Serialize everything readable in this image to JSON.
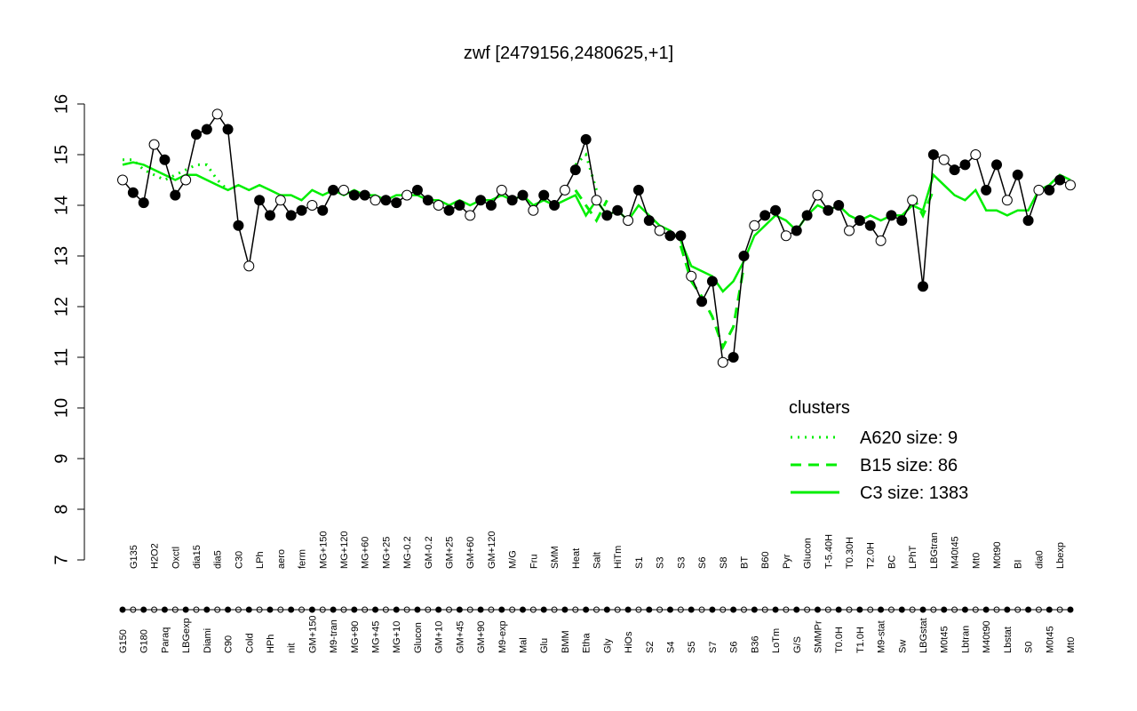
{
  "chart_data": {
    "type": "line",
    "title": "zwf [2479156,2480625,+1]",
    "categories": [
      "G150",
      "G135",
      "G180",
      "H2O2",
      "Paraq",
      "Oxctl",
      "LBGexp",
      "dia15",
      "Diami",
      "dia5",
      "C90",
      "C30",
      "Cold",
      "LPh",
      "HPh",
      "aero",
      "nit",
      "ferm",
      "GM+150",
      "MG+150",
      "M9-tran",
      "MG+120",
      "MG+90",
      "MG+60",
      "MG+45",
      "MG+25",
      "MG+10",
      "MG-0.2",
      "Glucon",
      "GM-0.2",
      "GM+10",
      "GM+25",
      "GM+45",
      "GM+60",
      "GM+90",
      "GM+120",
      "M9-exp",
      "M/G",
      "Mal",
      "Fru",
      "Glu",
      "SMM",
      "BMM",
      "Heat",
      "Etha",
      "Salt",
      "Gly",
      "HiTm",
      "HiOs",
      "S1",
      "S2",
      "S3",
      "S4",
      "S3",
      "S5",
      "S6",
      "S7",
      "S8",
      "S6",
      "BT",
      "B36",
      "B60",
      "LoTm",
      "Pyr",
      "G/S",
      "Glucon",
      "SMMPr",
      "T-5.40H",
      "T0.0H",
      "T0.30H",
      "T1.0H",
      "T2.0H",
      "M9-stat",
      "BC",
      "Sw",
      "LPhT",
      "LBGstat",
      "LBGtran",
      "M0t45",
      "M40t45",
      "Lbtran",
      "Mt0",
      "M40t90",
      "M0t90",
      "Lbstat",
      "BI",
      "S0",
      "dia0",
      "M0t45",
      "Lbexp",
      "Mt0"
    ],
    "values": [
      14.5,
      14.25,
      14.05,
      15.2,
      14.9,
      14.2,
      14.5,
      15.4,
      15.5,
      15.8,
      15.5,
      13.6,
      12.8,
      14.1,
      13.8,
      14.1,
      13.8,
      13.9,
      14.0,
      13.9,
      14.3,
      14.3,
      14.2,
      14.2,
      14.1,
      14.1,
      14.05,
      14.2,
      14.3,
      14.1,
      14.0,
      13.9,
      14.0,
      13.8,
      14.1,
      14.0,
      14.3,
      14.1,
      14.2,
      13.9,
      14.2,
      14.0,
      14.3,
      14.7,
      15.3,
      14.1,
      13.8,
      13.9,
      13.7,
      14.3,
      13.7,
      13.5,
      13.4,
      13.4,
      12.6,
      12.1,
      12.5,
      10.9,
      11.0,
      13.0,
      13.6,
      13.8,
      13.9,
      13.4,
      13.5,
      13.8,
      14.2,
      13.9,
      14.0,
      13.5,
      13.7,
      13.6,
      13.3,
      13.8,
      13.7,
      14.1,
      12.4,
      15.0,
      14.9,
      14.7,
      14.8,
      15.0,
      14.3,
      14.8,
      14.1,
      14.6,
      13.7,
      14.3,
      14.3,
      14.5,
      14.4
    ],
    "series": [
      {
        "name": "A620 size: 9",
        "color": "#00ee00",
        "style": "dotted",
        "values": [
          14.9,
          14.9,
          14.7,
          14.6,
          14.5,
          14.6,
          14.7,
          14.8,
          14.8,
          14.5,
          14.3,
          null,
          null,
          null,
          null,
          null,
          null,
          null,
          null,
          null,
          null,
          null,
          null,
          null,
          null,
          null,
          null,
          null,
          null,
          null,
          null,
          null,
          null,
          null,
          null,
          null,
          null,
          null,
          null,
          null,
          null,
          null,
          null,
          14.8,
          15.0,
          14.3,
          null,
          null,
          null,
          null,
          null,
          null,
          null,
          null,
          null,
          null,
          null,
          null,
          null,
          null,
          null,
          null,
          null,
          null,
          null,
          null,
          null,
          null,
          null,
          null,
          null,
          null,
          null,
          null,
          null,
          null,
          null,
          null,
          null,
          null,
          null,
          null,
          null,
          null,
          null,
          null,
          null,
          null,
          null,
          null,
          null
        ]
      },
      {
        "name": "B15 size: 86",
        "color": "#00ee00",
        "style": "dashed",
        "values": [
          null,
          null,
          null,
          null,
          null,
          null,
          null,
          null,
          null,
          null,
          null,
          null,
          null,
          null,
          null,
          null,
          null,
          null,
          null,
          null,
          null,
          null,
          null,
          null,
          null,
          null,
          null,
          null,
          null,
          null,
          null,
          null,
          null,
          null,
          null,
          null,
          null,
          null,
          null,
          null,
          null,
          null,
          null,
          14.3,
          14.0,
          13.7,
          14.1,
          null,
          null,
          null,
          null,
          null,
          null,
          13.2,
          12.5,
          12.2,
          11.8,
          11.2,
          11.6,
          12.8,
          null,
          null,
          null,
          null,
          null,
          null,
          null,
          null,
          null,
          null,
          null,
          null,
          null,
          null,
          null,
          14.2,
          13.8,
          14.3,
          null,
          null,
          null,
          null,
          null,
          null,
          null,
          null,
          null,
          null,
          null,
          null,
          null
        ]
      },
      {
        "name": "C3 size: 1383",
        "color": "#00ee00",
        "style": "solid",
        "values": [
          14.8,
          14.85,
          14.8,
          14.7,
          14.6,
          14.5,
          14.6,
          14.6,
          14.5,
          14.4,
          14.3,
          14.4,
          14.3,
          14.4,
          14.3,
          14.2,
          14.2,
          14.1,
          14.3,
          14.2,
          14.3,
          14.2,
          14.3,
          14.2,
          14.2,
          14.1,
          14.2,
          14.2,
          14.2,
          14.1,
          14.1,
          14.0,
          14.1,
          14.0,
          14.1,
          14.1,
          14.2,
          14.1,
          14.2,
          14.0,
          14.1,
          14.0,
          14.1,
          14.2,
          13.8,
          14.1,
          13.8,
          13.9,
          13.7,
          14.0,
          13.8,
          13.6,
          13.5,
          13.3,
          12.8,
          12.7,
          12.6,
          12.3,
          12.5,
          12.9,
          13.4,
          13.6,
          13.8,
          13.7,
          13.5,
          13.8,
          14.0,
          13.9,
          14.0,
          13.8,
          13.7,
          13.8,
          13.7,
          13.8,
          13.8,
          14.0,
          13.9,
          14.6,
          14.4,
          14.2,
          14.1,
          14.3,
          13.9,
          13.9,
          13.8,
          13.9,
          13.9,
          14.3,
          14.4,
          14.6,
          14.5
        ]
      }
    ],
    "legend_title": "clusters",
    "ylim": [
      7,
      16
    ],
    "yticks": [
      7,
      8,
      9,
      10,
      11,
      12,
      13,
      14,
      15,
      16
    ]
  }
}
